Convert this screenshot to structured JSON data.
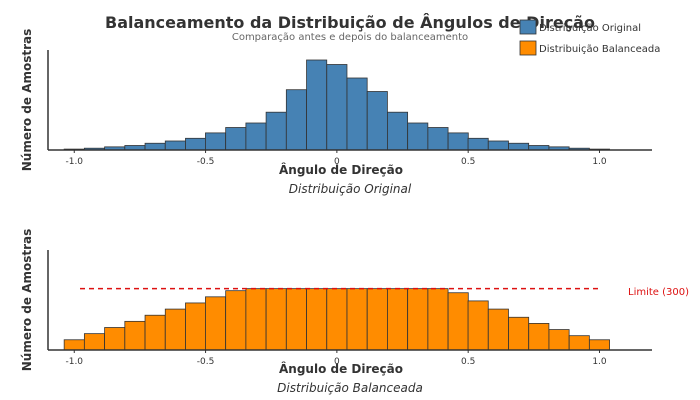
{
  "figure": {
    "title": "Balanceamento da Distribuição de Ângulos de Direção",
    "subtitle": "Comparação antes e depois do balanceamento",
    "legend": [
      {
        "label": "Distribuição Original",
        "color": "#4682b4"
      },
      {
        "label": "Distribuição Balanceada",
        "color": "#ff8c00"
      }
    ]
  },
  "chart_data": [
    {
      "type": "bar",
      "name": "original",
      "caption": "Distribuição Original",
      "xlabel": "Ângulo de Direção",
      "ylabel": "Número de Amostras",
      "xlim": [
        -1.1,
        1.2
      ],
      "ylim": [
        0,
        1000
      ],
      "xticks": [
        -1.0,
        -0.5,
        0,
        0.5,
        1.0
      ],
      "xtick_labels": [
        "-1.0",
        "-0.5",
        "0",
        "0.5",
        "1.0"
      ],
      "color": "#4682b4",
      "bin_width": 0.0769,
      "bins": [
        -1.0,
        -0.923,
        -0.846,
        -0.769,
        -0.692,
        -0.615,
        -0.538,
        -0.462,
        -0.385,
        -0.308,
        -0.231,
        -0.154,
        -0.077,
        0.0,
        0.077,
        0.154,
        0.231,
        0.308,
        0.385,
        0.462,
        0.538,
        0.615,
        0.692,
        0.769,
        0.846,
        0.923,
        1.0
      ],
      "values": [
        10,
        20,
        35,
        50,
        75,
        100,
        130,
        190,
        250,
        300,
        420,
        670,
        1000,
        950,
        800,
        650,
        420,
        300,
        250,
        190,
        130,
        100,
        75,
        50,
        35,
        20,
        10
      ]
    },
    {
      "type": "bar",
      "name": "balanceada",
      "caption": "Distribuição Balanceada",
      "xlabel": "Ângulo de Direção",
      "ylabel": "Número de Amostras",
      "xlim": [
        -1.1,
        1.2
      ],
      "ylim": [
        0,
        440
      ],
      "xticks": [
        -1.0,
        -0.5,
        0,
        0.5,
        1.0
      ],
      "xtick_labels": [
        "-1.0",
        "-0.5",
        "0",
        "0.5",
        "1.0"
      ],
      "color": "#ff8c00",
      "bin_width": 0.0769,
      "bins": [
        -1.0,
        -0.923,
        -0.846,
        -0.769,
        -0.692,
        -0.615,
        -0.538,
        -0.462,
        -0.385,
        -0.308,
        -0.231,
        -0.154,
        -0.077,
        0.0,
        0.077,
        0.154,
        0.231,
        0.308,
        0.385,
        0.462,
        0.538,
        0.615,
        0.692,
        0.769,
        0.846,
        0.923,
        1.0
      ],
      "values": [
        50,
        80,
        110,
        140,
        170,
        200,
        230,
        260,
        290,
        300,
        300,
        300,
        300,
        300,
        300,
        300,
        300,
        300,
        300,
        280,
        240,
        200,
        160,
        130,
        100,
        70,
        50
      ],
      "threshold": 300,
      "threshold_label": "Limite (300)",
      "threshold_color": "#dd1111"
    }
  ]
}
